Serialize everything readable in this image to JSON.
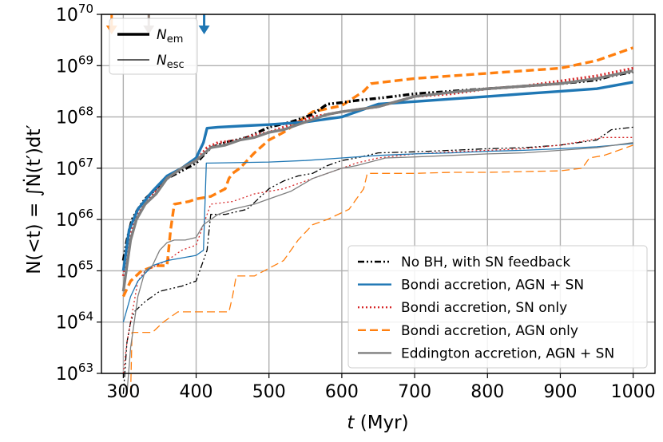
{
  "chart_data": {
    "type": "line",
    "xlabel": "t (Myr)",
    "ylabel": "N(<t) = ∫Ṅ(t′)dt′",
    "yscale": "log",
    "xlim": [
      270,
      1030
    ],
    "ylim_exp": [
      63,
      70
    ],
    "grid": true,
    "x_ticks": [
      300,
      400,
      500,
      600,
      700,
      800,
      900,
      1000
    ],
    "y_tick_exps": [
      63,
      64,
      65,
      66,
      67,
      68,
      69,
      70
    ],
    "y_tick_base": "10",
    "markers": [
      {
        "x": 284,
        "color": "#ff7f0e"
      },
      {
        "x": 335,
        "color": "#8c7b73"
      },
      {
        "x": 411,
        "color": "#1f77b4"
      }
    ],
    "line_style_legend": [
      {
        "label": "N",
        "sub": "em",
        "style": "thick"
      },
      {
        "label": "N",
        "sub": "esc",
        "style": "thin"
      }
    ],
    "series": [
      {
        "name": "No BH, with SN feedback",
        "color": "#000000",
        "dash": "dashdotdot",
        "em": [
          [
            300,
            65.2
          ],
          [
            305,
            65.6
          ],
          [
            312,
            66.0
          ],
          [
            320,
            66.2
          ],
          [
            330,
            66.4
          ],
          [
            345,
            66.6
          ],
          [
            360,
            66.8
          ],
          [
            380,
            66.95
          ],
          [
            400,
            67.1
          ],
          [
            420,
            67.4
          ],
          [
            440,
            67.5
          ],
          [
            470,
            67.6
          ],
          [
            500,
            67.8
          ],
          [
            530,
            67.9
          ],
          [
            560,
            68.05
          ],
          [
            580,
            68.25
          ],
          [
            600,
            68.28
          ],
          [
            620,
            68.32
          ],
          [
            660,
            68.38
          ],
          [
            700,
            68.45
          ],
          [
            750,
            68.5
          ],
          [
            800,
            68.55
          ],
          [
            850,
            68.6
          ],
          [
            900,
            68.65
          ],
          [
            950,
            68.72
          ],
          [
            970,
            68.8
          ],
          [
            1000,
            68.88
          ]
        ],
        "esc": [
          [
            300,
            62.6
          ],
          [
            305,
            63.6
          ],
          [
            310,
            64.0
          ],
          [
            315,
            64.2
          ],
          [
            330,
            64.4
          ],
          [
            350,
            64.6
          ],
          [
            380,
            64.7
          ],
          [
            400,
            64.8
          ],
          [
            415,
            65.4
          ],
          [
            420,
            66.1
          ],
          [
            440,
            66.1
          ],
          [
            470,
            66.2
          ],
          [
            500,
            66.6
          ],
          [
            520,
            66.75
          ],
          [
            540,
            66.85
          ],
          [
            560,
            66.9
          ],
          [
            580,
            67.05
          ],
          [
            600,
            67.15
          ],
          [
            620,
            67.2
          ],
          [
            650,
            67.3
          ],
          [
            700,
            67.32
          ],
          [
            750,
            67.35
          ],
          [
            800,
            67.38
          ],
          [
            850,
            67.4
          ],
          [
            900,
            67.45
          ],
          [
            950,
            67.55
          ],
          [
            970,
            67.75
          ],
          [
            1000,
            67.8
          ]
        ]
      },
      {
        "name": "Bondi accretion, AGN + SN",
        "color": "#1f77b4",
        "dash": "solid",
        "em": [
          [
            300,
            65.0
          ],
          [
            308,
            65.8
          ],
          [
            320,
            66.2
          ],
          [
            340,
            66.55
          ],
          [
            360,
            66.85
          ],
          [
            380,
            67.0
          ],
          [
            400,
            67.2
          ],
          [
            410,
            67.5
          ],
          [
            415,
            67.78
          ],
          [
            430,
            67.8
          ],
          [
            470,
            67.83
          ],
          [
            500,
            67.85
          ],
          [
            550,
            67.9
          ],
          [
            600,
            68.0
          ],
          [
            650,
            68.25
          ],
          [
            700,
            68.3
          ],
          [
            750,
            68.35
          ],
          [
            800,
            68.4
          ],
          [
            850,
            68.45
          ],
          [
            900,
            68.5
          ],
          [
            950,
            68.55
          ],
          [
            1000,
            68.68
          ]
        ],
        "esc": [
          [
            300,
            64.0
          ],
          [
            310,
            64.5
          ],
          [
            320,
            64.8
          ],
          [
            340,
            65.1
          ],
          [
            360,
            65.2
          ],
          [
            380,
            65.25
          ],
          [
            400,
            65.3
          ],
          [
            410,
            65.4
          ],
          [
            414,
            67.1
          ],
          [
            420,
            67.1
          ],
          [
            500,
            67.12
          ],
          [
            550,
            67.15
          ],
          [
            600,
            67.2
          ],
          [
            650,
            67.25
          ],
          [
            700,
            67.28
          ],
          [
            750,
            67.3
          ],
          [
            800,
            67.33
          ],
          [
            850,
            67.35
          ],
          [
            900,
            67.38
          ],
          [
            950,
            67.42
          ],
          [
            1000,
            67.48
          ]
        ]
      },
      {
        "name": "Bondi accretion, SN only",
        "color": "#d62728",
        "dash": "dotted",
        "em": [
          [
            300,
            64.9
          ],
          [
            308,
            65.5
          ],
          [
            315,
            66.0
          ],
          [
            330,
            66.3
          ],
          [
            345,
            66.55
          ],
          [
            360,
            66.8
          ],
          [
            380,
            67.0
          ],
          [
            400,
            67.15
          ],
          [
            415,
            67.4
          ],
          [
            430,
            67.5
          ],
          [
            460,
            67.55
          ],
          [
            480,
            67.65
          ],
          [
            500,
            67.7
          ],
          [
            530,
            67.85
          ],
          [
            560,
            68.0
          ],
          [
            600,
            68.1
          ],
          [
            650,
            68.2
          ],
          [
            700,
            68.4
          ],
          [
            750,
            68.45
          ],
          [
            800,
            68.55
          ],
          [
            850,
            68.6
          ],
          [
            900,
            68.7
          ],
          [
            950,
            68.8
          ],
          [
            1000,
            68.95
          ]
        ],
        "esc": [
          [
            300,
            63.0
          ],
          [
            305,
            63.6
          ],
          [
            310,
            64.0
          ],
          [
            320,
            64.8
          ],
          [
            330,
            65.0
          ],
          [
            345,
            65.1
          ],
          [
            360,
            65.2
          ],
          [
            380,
            65.4
          ],
          [
            400,
            65.5
          ],
          [
            410,
            65.9
          ],
          [
            420,
            66.3
          ],
          [
            450,
            66.35
          ],
          [
            480,
            66.5
          ],
          [
            520,
            66.6
          ],
          [
            560,
            66.8
          ],
          [
            580,
            66.9
          ],
          [
            600,
            67.0
          ],
          [
            620,
            67.1
          ],
          [
            650,
            67.2
          ],
          [
            700,
            67.28
          ],
          [
            750,
            67.32
          ],
          [
            800,
            67.35
          ],
          [
            850,
            67.38
          ],
          [
            900,
            67.45
          ],
          [
            960,
            67.6
          ],
          [
            1000,
            67.6
          ]
        ]
      },
      {
        "name": "Bondi accretion, AGN only",
        "color": "#ff7f0e",
        "dash": "dashed",
        "em": [
          [
            300,
            64.5
          ],
          [
            310,
            64.8
          ],
          [
            325,
            65.0
          ],
          [
            345,
            65.1
          ],
          [
            360,
            65.1
          ],
          [
            365,
            65.8
          ],
          [
            370,
            66.3
          ],
          [
            390,
            66.35
          ],
          [
            400,
            66.4
          ],
          [
            420,
            66.45
          ],
          [
            440,
            66.6
          ],
          [
            445,
            66.8
          ],
          [
            450,
            66.9
          ],
          [
            460,
            67.0
          ],
          [
            480,
            67.3
          ],
          [
            500,
            67.55
          ],
          [
            520,
            67.7
          ],
          [
            540,
            67.9
          ],
          [
            560,
            68.1
          ],
          [
            600,
            68.22
          ],
          [
            630,
            68.5
          ],
          [
            640,
            68.65
          ],
          [
            700,
            68.75
          ],
          [
            800,
            68.85
          ],
          [
            900,
            68.95
          ],
          [
            950,
            69.1
          ],
          [
            1000,
            69.35
          ]
        ],
        "esc": [
          [
            310,
            62.6
          ],
          [
            312,
            63.8
          ],
          [
            340,
            63.8
          ],
          [
            355,
            64.0
          ],
          [
            375,
            64.2
          ],
          [
            400,
            64.2
          ],
          [
            445,
            64.2
          ],
          [
            450,
            64.5
          ],
          [
            455,
            64.9
          ],
          [
            480,
            64.9
          ],
          [
            520,
            65.2
          ],
          [
            540,
            65.6
          ],
          [
            560,
            65.9
          ],
          [
            580,
            66.0
          ],
          [
            610,
            66.2
          ],
          [
            630,
            66.6
          ],
          [
            635,
            66.9
          ],
          [
            700,
            66.9
          ],
          [
            750,
            66.92
          ],
          [
            800,
            66.92
          ],
          [
            900,
            66.95
          ],
          [
            930,
            67.0
          ],
          [
            940,
            67.2
          ],
          [
            960,
            67.25
          ],
          [
            970,
            67.3
          ],
          [
            1000,
            67.45
          ]
        ]
      },
      {
        "name": "Eddington accretion, AGN + SN",
        "color": "#7f7f7f",
        "dash": "solid",
        "em": [
          [
            300,
            64.6
          ],
          [
            310,
            65.6
          ],
          [
            318,
            66.0
          ],
          [
            330,
            66.3
          ],
          [
            345,
            66.5
          ],
          [
            360,
            66.8
          ],
          [
            380,
            67.0
          ],
          [
            400,
            67.15
          ],
          [
            420,
            67.4
          ],
          [
            440,
            67.45
          ],
          [
            460,
            67.55
          ],
          [
            480,
            67.6
          ],
          [
            500,
            67.7
          ],
          [
            520,
            67.75
          ],
          [
            540,
            67.85
          ],
          [
            560,
            67.95
          ],
          [
            580,
            68.05
          ],
          [
            600,
            68.1
          ],
          [
            650,
            68.2
          ],
          [
            700,
            68.4
          ],
          [
            750,
            68.48
          ],
          [
            800,
            68.55
          ],
          [
            850,
            68.6
          ],
          [
            900,
            68.65
          ],
          [
            950,
            68.75
          ],
          [
            1000,
            68.9
          ]
        ],
        "esc": [
          [
            305,
            62.6
          ],
          [
            310,
            63.5
          ],
          [
            320,
            64.5
          ],
          [
            330,
            65.0
          ],
          [
            340,
            65.1
          ],
          [
            350,
            65.4
          ],
          [
            360,
            65.55
          ],
          [
            370,
            65.6
          ],
          [
            385,
            65.6
          ],
          [
            400,
            65.65
          ],
          [
            410,
            65.9
          ],
          [
            430,
            66.1
          ],
          [
            450,
            66.2
          ],
          [
            480,
            66.3
          ],
          [
            500,
            66.4
          ],
          [
            530,
            66.55
          ],
          [
            560,
            66.8
          ],
          [
            600,
            67.0
          ],
          [
            620,
            67.05
          ],
          [
            660,
            67.2
          ],
          [
            700,
            67.22
          ],
          [
            750,
            67.25
          ],
          [
            800,
            67.28
          ],
          [
            850,
            67.3
          ],
          [
            900,
            67.35
          ],
          [
            950,
            67.4
          ],
          [
            1000,
            67.5
          ]
        ]
      }
    ]
  }
}
